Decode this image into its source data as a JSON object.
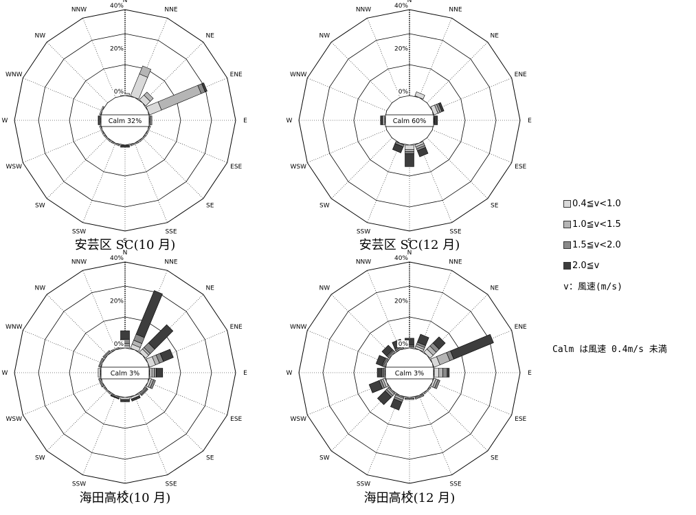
{
  "colors": {
    "bins": [
      "#d9d9d9",
      "#b5b5b5",
      "#8a8a8a",
      "#3d3d3d"
    ],
    "stroke": "#000000",
    "background": "#ffffff"
  },
  "legend": {
    "items": [
      "0.4≦v<1.0",
      "1.0≦v<1.5",
      "1.5≦v<2.0",
      "2.0≦v"
    ],
    "unit_note": "v：風速(m/s)"
  },
  "calm_note": "Calm は風速 0.4m/s 未満",
  "chart_data": [
    {
      "type": "windrose",
      "title": "安芸区 SC(10 月)",
      "calm": "Calm 32%",
      "ticks": [
        "0%",
        "20%",
        "40%"
      ],
      "directions": [
        "N",
        "NNE",
        "NE",
        "ENE",
        "E",
        "ESE",
        "SE",
        "SSE",
        "S",
        "SSW",
        "SW",
        "WSW",
        "W",
        "WNW",
        "NW",
        "NNW"
      ],
      "max_percent": 40,
      "series_names": [
        "0.4≦v<1.0",
        "1.0≦v<1.5",
        "1.5≦v<2.0",
        "2.0≦v"
      ],
      "values": [
        [
          1,
          0,
          0,
          0
        ],
        [
          11,
          4,
          0,
          0
        ],
        [
          3,
          2,
          0,
          0
        ],
        [
          6,
          20,
          2,
          1
        ],
        [
          0.5,
          0.5,
          0,
          0
        ],
        [
          0.5,
          0,
          0,
          0
        ],
        [
          0.5,
          0,
          0,
          0
        ],
        [
          0.5,
          0,
          0,
          0
        ],
        [
          0,
          0,
          0,
          1
        ],
        [
          0.5,
          0,
          0,
          0
        ],
        [
          0.5,
          0,
          0,
          0
        ],
        [
          0.5,
          0,
          0,
          0
        ],
        [
          0,
          0.5,
          0,
          0.5
        ],
        [
          0.5,
          0,
          0,
          0
        ],
        [
          0,
          0,
          0,
          0
        ],
        [
          0,
          0,
          0,
          0
        ]
      ]
    },
    {
      "type": "windrose",
      "title": "安芸区 SC(12 月)",
      "calm": "Calm 60%",
      "ticks": [
        "0%",
        "20%",
        "40%"
      ],
      "directions": [
        "N",
        "NNE",
        "NE",
        "ENE",
        "E",
        "ESE",
        "SE",
        "SSE",
        "S",
        "SSW",
        "SW",
        "WSW",
        "W",
        "WNW",
        "NW",
        "NNW"
      ],
      "max_percent": 40,
      "series_names": [
        "0.4≦v<1.0",
        "1.0≦v<1.5",
        "1.5≦v<2.0",
        "2.0≦v"
      ],
      "values": [
        [
          0,
          0,
          0,
          0
        ],
        [
          2,
          0,
          0,
          0
        ],
        [
          0,
          0,
          0,
          0
        ],
        [
          2,
          1,
          1,
          1
        ],
        [
          0,
          0,
          0,
          1.5
        ],
        [
          0,
          0,
          0,
          0
        ],
        [
          0,
          0,
          0,
          0
        ],
        [
          1,
          1,
          1,
          3
        ],
        [
          2,
          1,
          1,
          6
        ],
        [
          0,
          0,
          1,
          3
        ],
        [
          0,
          0,
          0,
          0
        ],
        [
          0,
          0,
          0,
          0
        ],
        [
          0,
          1,
          0,
          1
        ],
        [
          0,
          0,
          0,
          0
        ],
        [
          0,
          0,
          0,
          0
        ],
        [
          0,
          0,
          0,
          0
        ]
      ]
    },
    {
      "type": "windrose",
      "title": "海田高校(10 月)",
      "calm": "Calm 3%",
      "ticks": [
        "0%",
        "20%",
        "40%"
      ],
      "directions": [
        "N",
        "NNE",
        "NE",
        "ENE",
        "E",
        "ESE",
        "SE",
        "SSE",
        "S",
        "SSW",
        "SW",
        "WSW",
        "W",
        "WNW",
        "NW",
        "NNW"
      ],
      "max_percent": 40,
      "series_names": [
        "0.4≦v<1.0",
        "1.0≦v<1.5",
        "1.5≦v<2.0",
        "2.0≦v"
      ],
      "values": [
        [
          1,
          1,
          2,
          4
        ],
        [
          2,
          2,
          3,
          22
        ],
        [
          2,
          1,
          3,
          12
        ],
        [
          3,
          2,
          2,
          5
        ],
        [
          1,
          1,
          1,
          3
        ],
        [
          1,
          1,
          1,
          0
        ],
        [
          0.5,
          0.5,
          0.5,
          0
        ],
        [
          1,
          0,
          0,
          1
        ],
        [
          1,
          0,
          0,
          1
        ],
        [
          0.5,
          0,
          0,
          0.5
        ],
        [
          0.5,
          0,
          0,
          0
        ],
        [
          0.5,
          0.5,
          0,
          0
        ],
        [
          1,
          0,
          0,
          0
        ],
        [
          0.5,
          0.5,
          0,
          0
        ],
        [
          0.5,
          0.5,
          0,
          0
        ],
        [
          0.5,
          0,
          0,
          0
        ]
      ]
    },
    {
      "type": "windrose",
      "title": "海田高校(12 月)",
      "calm": "Calm 3%",
      "ticks": [
        "0%",
        "20%",
        "40%"
      ],
      "directions": [
        "N",
        "NNE",
        "NE",
        "ENE",
        "E",
        "ESE",
        "SE",
        "SSE",
        "S",
        "SSW",
        "SW",
        "WSW",
        "W",
        "WNW",
        "NW",
        "NNW"
      ],
      "max_percent": 40,
      "series_names": [
        "0.4≦v<1.0",
        "1.0≦v<1.5",
        "1.5≦v<2.0",
        "2.0≦v"
      ],
      "values": [
        [
          0.5,
          0.5,
          0.5,
          3
        ],
        [
          1,
          1,
          1,
          4
        ],
        [
          2,
          2,
          2,
          4
        ],
        [
          3,
          5,
          2,
          20
        ],
        [
          2,
          2,
          2,
          1
        ],
        [
          1,
          1,
          1,
          0
        ],
        [
          0.5,
          0,
          0,
          0
        ],
        [
          0.5,
          0.5,
          0,
          0
        ],
        [
          0.5,
          0.5,
          0,
          0
        ],
        [
          0.5,
          1,
          1,
          4
        ],
        [
          0.5,
          1,
          1,
          5
        ],
        [
          1,
          1,
          1,
          5
        ],
        [
          0.5,
          0.5,
          0.5,
          2
        ],
        [
          0.5,
          0.5,
          0.5,
          3
        ],
        [
          0.5,
          0.5,
          0.5,
          3
        ],
        [
          0.5,
          0.5,
          0.5,
          3
        ]
      ]
    }
  ]
}
